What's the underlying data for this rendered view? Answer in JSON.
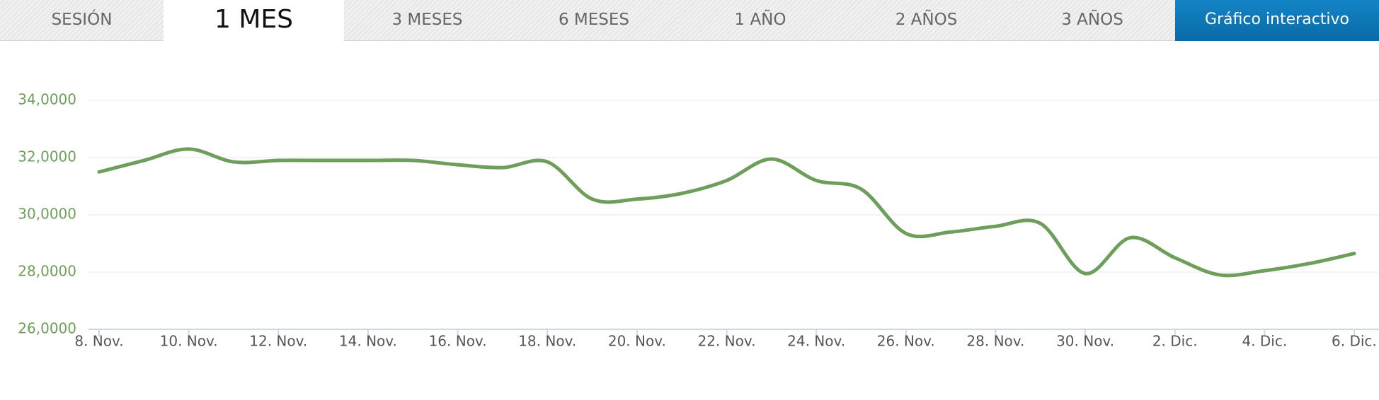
{
  "tabs": [
    "SESIÓN",
    "1 MES",
    "3 MESES",
    "6 MESES",
    "1 AÑO",
    "2 AÑOS",
    "3 AÑOS",
    "Gráfico interactivo"
  ],
  "chart_data": {
    "type": "line",
    "categories": [
      "8. Nov.",
      null,
      "10. Nov.",
      null,
      "12. Nov.",
      null,
      "14. Nov.",
      null,
      "16. Nov.",
      null,
      "18. Nov.",
      null,
      "20. Nov.",
      null,
      "22. Nov.",
      null,
      "24. Nov.",
      null,
      "26. Nov.",
      null,
      "28. Nov.",
      null,
      "30. Nov.",
      null,
      "2. Dic.",
      null,
      "4. Dic.",
      null,
      "6. Dic."
    ],
    "series": [
      {
        "color": "#6d9f5b",
        "values": [
          31.5,
          31.9,
          32.3,
          31.85,
          31.9,
          31.9,
          31.9,
          31.9,
          31.75,
          31.65,
          31.85,
          30.55,
          30.55,
          30.75,
          31.2,
          31.95,
          31.2,
          30.9,
          29.35,
          29.4,
          29.6,
          29.7,
          27.95,
          29.2,
          28.5,
          27.9,
          28.05,
          28.3,
          28.65
        ]
      }
    ],
    "ylim": [
      26,
      34
    ],
    "yticks": [
      {
        "value": 26,
        "label": "26,0000"
      },
      {
        "value": 28,
        "label": "28,0000"
      },
      {
        "value": 30,
        "label": "30,0000"
      },
      {
        "value": 32,
        "label": "32,0000"
      },
      {
        "value": 34,
        "label": "34,0000"
      }
    ],
    "grid": true
  }
}
